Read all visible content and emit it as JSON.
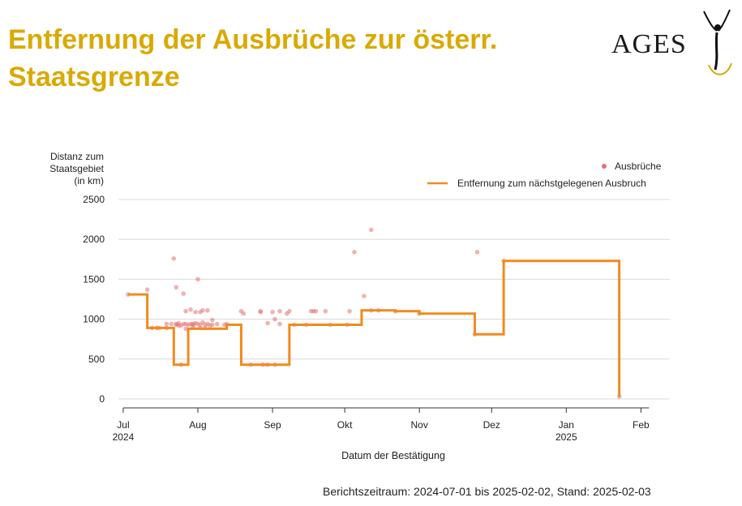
{
  "header": {
    "title": "Entfernung der Ausbrüche zur österr. Staatsgrenze",
    "logo_text": "AGES"
  },
  "footer": {
    "report_text": "Berichtszeitraum: 2024-07-01 bis 2025-02-02, Stand: 2025-02-03"
  },
  "chart_data": {
    "type": "line",
    "title": "",
    "xlabel": "Datum der Bestätigung",
    "ylabel": [
      "Distanz zum",
      "Staatsgebiet",
      "(in km)"
    ],
    "xlim": [
      "2024-06-29",
      "2025-02-13"
    ],
    "ylim": [
      0,
      2500
    ],
    "grid": "horizontal",
    "legend_position": "top-right",
    "x_ticks": [
      {
        "date": "2024-07-01",
        "label": "Jul",
        "sublabel": "2024"
      },
      {
        "date": "2024-08-01",
        "label": "Aug",
        "sublabel": ""
      },
      {
        "date": "2024-09-01",
        "label": "Sep",
        "sublabel": ""
      },
      {
        "date": "2024-10-01",
        "label": "Okt",
        "sublabel": ""
      },
      {
        "date": "2024-11-01",
        "label": "Nov",
        "sublabel": ""
      },
      {
        "date": "2024-12-01",
        "label": "Dez",
        "sublabel": ""
      },
      {
        "date": "2025-01-01",
        "label": "Jan",
        "sublabel": "2025"
      },
      {
        "date": "2025-02-01",
        "label": "Feb",
        "sublabel": ""
      }
    ],
    "y_ticks": [
      {
        "value": 0,
        "label": "0"
      },
      {
        "value": 500,
        "label": "500"
      },
      {
        "value": 1000,
        "label": "1000"
      },
      {
        "value": 1500,
        "label": "1500"
      },
      {
        "value": 2000,
        "label": "2000"
      },
      {
        "value": 2500,
        "label": "2500"
      }
    ],
    "series": [
      {
        "name": "Ausbrüche",
        "kind": "scatter",
        "color": "#e57373",
        "points": [
          [
            "2024-07-03",
            1310
          ],
          [
            "2024-07-11",
            1370
          ],
          [
            "2024-07-13",
            890
          ],
          [
            "2024-07-15",
            890
          ],
          [
            "2024-07-16",
            890
          ],
          [
            "2024-07-19",
            890
          ],
          [
            "2024-07-19",
            940
          ],
          [
            "2024-07-21",
            940
          ],
          [
            "2024-07-22",
            1760
          ],
          [
            "2024-07-23",
            940
          ],
          [
            "2024-07-23",
            930
          ],
          [
            "2024-07-23",
            1400
          ],
          [
            "2024-07-24",
            920
          ],
          [
            "2024-07-24",
            950
          ],
          [
            "2024-07-25",
            920
          ],
          [
            "2024-07-25",
            430
          ],
          [
            "2024-07-26",
            940
          ],
          [
            "2024-07-26",
            1320
          ],
          [
            "2024-07-27",
            880
          ],
          [
            "2024-07-27",
            940
          ],
          [
            "2024-07-27",
            1100
          ],
          [
            "2024-07-28",
            930
          ],
          [
            "2024-07-29",
            940
          ],
          [
            "2024-07-29",
            1120
          ],
          [
            "2024-07-30",
            900
          ],
          [
            "2024-07-30",
            940
          ],
          [
            "2024-07-30",
            930
          ],
          [
            "2024-07-31",
            1090
          ],
          [
            "2024-07-31",
            950
          ],
          [
            "2024-08-01",
            940
          ],
          [
            "2024-08-01",
            1500
          ],
          [
            "2024-08-02",
            930
          ],
          [
            "2024-08-02",
            1090
          ],
          [
            "2024-08-02",
            890
          ],
          [
            "2024-08-03",
            960
          ],
          [
            "2024-08-03",
            1110
          ],
          [
            "2024-08-04",
            890
          ],
          [
            "2024-08-04",
            930
          ],
          [
            "2024-08-05",
            1110
          ],
          [
            "2024-08-05",
            940
          ],
          [
            "2024-08-06",
            920
          ],
          [
            "2024-08-07",
            990
          ],
          [
            "2024-08-07",
            930
          ],
          [
            "2024-08-09",
            940
          ],
          [
            "2024-08-12",
            930
          ],
          [
            "2024-08-13",
            940
          ],
          [
            "2024-08-19",
            1100
          ],
          [
            "2024-08-20",
            1070
          ],
          [
            "2024-08-23",
            430
          ],
          [
            "2024-08-27",
            1090
          ],
          [
            "2024-08-27",
            1100
          ],
          [
            "2024-08-28",
            430
          ],
          [
            "2024-08-30",
            430
          ],
          [
            "2024-08-30",
            950
          ],
          [
            "2024-09-01",
            1090
          ],
          [
            "2024-09-02",
            430
          ],
          [
            "2024-09-02",
            1000
          ],
          [
            "2024-09-04",
            940
          ],
          [
            "2024-09-04",
            1100
          ],
          [
            "2024-09-07",
            1070
          ],
          [
            "2024-09-08",
            1100
          ],
          [
            "2024-09-10",
            930
          ],
          [
            "2024-09-15",
            930
          ],
          [
            "2024-09-17",
            1100
          ],
          [
            "2024-09-18",
            1100
          ],
          [
            "2024-09-19",
            1100
          ],
          [
            "2024-09-23",
            1100
          ],
          [
            "2024-09-25",
            930
          ],
          [
            "2024-10-02",
            930
          ],
          [
            "2024-10-03",
            1100
          ],
          [
            "2024-10-05",
            1840
          ],
          [
            "2024-10-09",
            1290
          ],
          [
            "2024-10-12",
            1110
          ],
          [
            "2024-10-12",
            2120
          ],
          [
            "2024-10-15",
            1110
          ],
          [
            "2024-10-22",
            1100
          ],
          [
            "2024-11-01",
            1070
          ],
          [
            "2024-11-24",
            810
          ],
          [
            "2024-11-25",
            1840
          ],
          [
            "2024-12-06",
            1730
          ],
          [
            "2025-01-23",
            30
          ]
        ]
      },
      {
        "name": "Entfernung zum nächstgelegenen Ausbruch",
        "kind": "step",
        "color": "#f28a1e",
        "points": [
          [
            "2024-07-03",
            1310
          ],
          [
            "2024-07-11",
            890
          ],
          [
            "2024-07-22",
            430
          ],
          [
            "2024-07-28",
            880
          ],
          [
            "2024-08-13",
            930
          ],
          [
            "2024-08-19",
            430
          ],
          [
            "2024-09-08",
            930
          ],
          [
            "2024-10-07",
            930
          ],
          [
            "2024-10-08",
            1110
          ],
          [
            "2024-10-22",
            1100
          ],
          [
            "2024-11-01",
            1070
          ],
          [
            "2024-11-24",
            810
          ],
          [
            "2024-12-06",
            1730
          ],
          [
            "2025-01-23",
            30
          ]
        ]
      }
    ]
  }
}
